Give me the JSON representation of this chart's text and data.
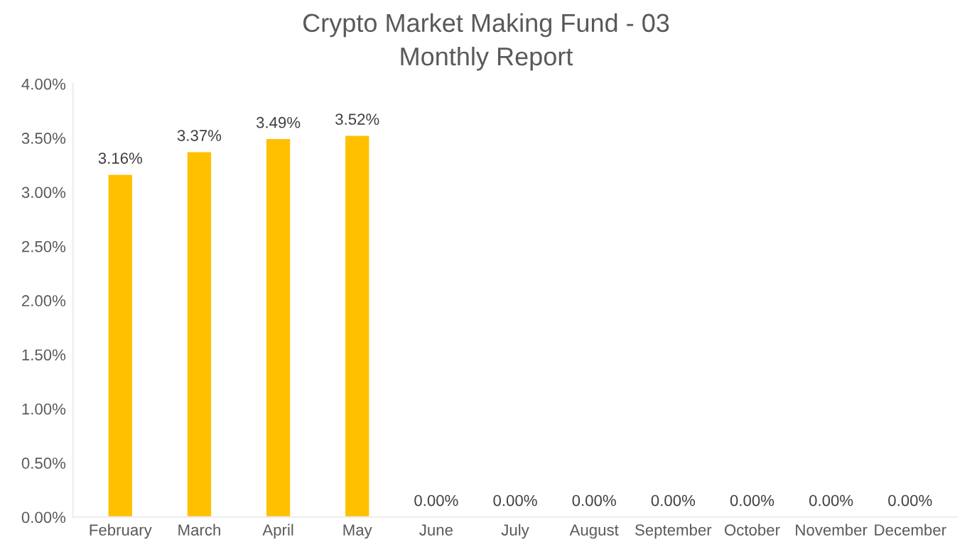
{
  "chart_data": {
    "type": "bar",
    "title": "Crypto Market Making Fund - 03",
    "subtitle": "Monthly Report",
    "categories": [
      "February",
      "March",
      "April",
      "May",
      "June",
      "July",
      "August",
      "September",
      "October",
      "November",
      "December"
    ],
    "values": [
      3.16,
      3.37,
      3.49,
      3.52,
      0,
      0,
      0,
      0,
      0,
      0,
      0
    ],
    "value_labels": [
      "3.16%",
      "3.37%",
      "3.49%",
      "3.52%",
      "0.00%",
      "0.00%",
      "0.00%",
      "0.00%",
      "0.00%",
      "0.00%",
      "0.00%"
    ],
    "color": "#ffc000",
    "ylim": [
      0,
      4
    ],
    "yticks": [
      {
        "value": 0,
        "label": "0.00%"
      },
      {
        "value": 0.5,
        "label": "0.50%"
      },
      {
        "value": 1,
        "label": "1.00%"
      },
      {
        "value": 1.5,
        "label": "1.50%"
      },
      {
        "value": 2,
        "label": "2.00%"
      },
      {
        "value": 2.5,
        "label": "2.50%"
      },
      {
        "value": 3,
        "label": "3.00%"
      },
      {
        "value": 3.5,
        "label": "3.50%"
      },
      {
        "value": 4,
        "label": "4.00%"
      }
    ],
    "grid": false
  }
}
